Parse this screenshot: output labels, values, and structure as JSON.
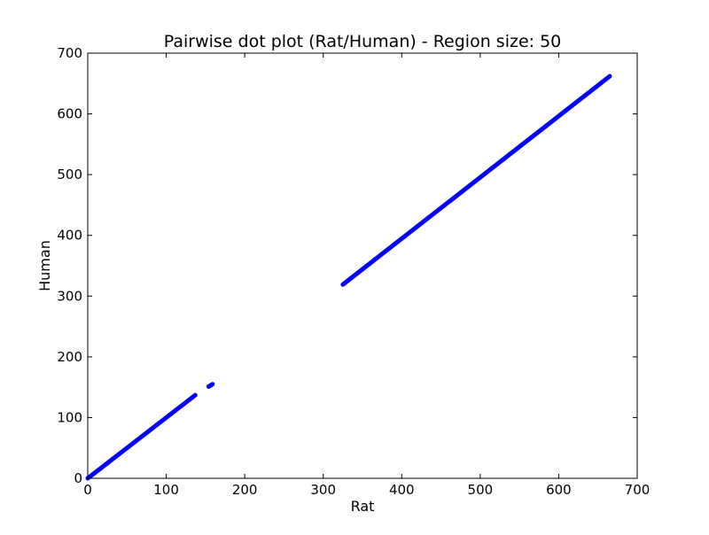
{
  "chart_data": {
    "type": "scatter",
    "title": "Pairwise dot plot (Rat/Human) - Region size: 50",
    "xlabel": "Rat",
    "ylabel": "Human",
    "xlim": [
      0,
      700
    ],
    "ylim": [
      0,
      700
    ],
    "xticks": [
      0,
      100,
      200,
      300,
      400,
      500,
      600,
      700
    ],
    "yticks": [
      0,
      100,
      200,
      300,
      400,
      500,
      600,
      700
    ],
    "grid": false,
    "color": "#0000ff",
    "segments": [
      {
        "x_start": 0,
        "y_start": 0,
        "x_end": 137,
        "y_end": 137
      },
      {
        "x_start": 154,
        "y_start": 151,
        "x_end": 159,
        "y_end": 155
      },
      {
        "x_start": 325,
        "y_start": 319,
        "x_end": 665,
        "y_end": 662
      }
    ]
  }
}
